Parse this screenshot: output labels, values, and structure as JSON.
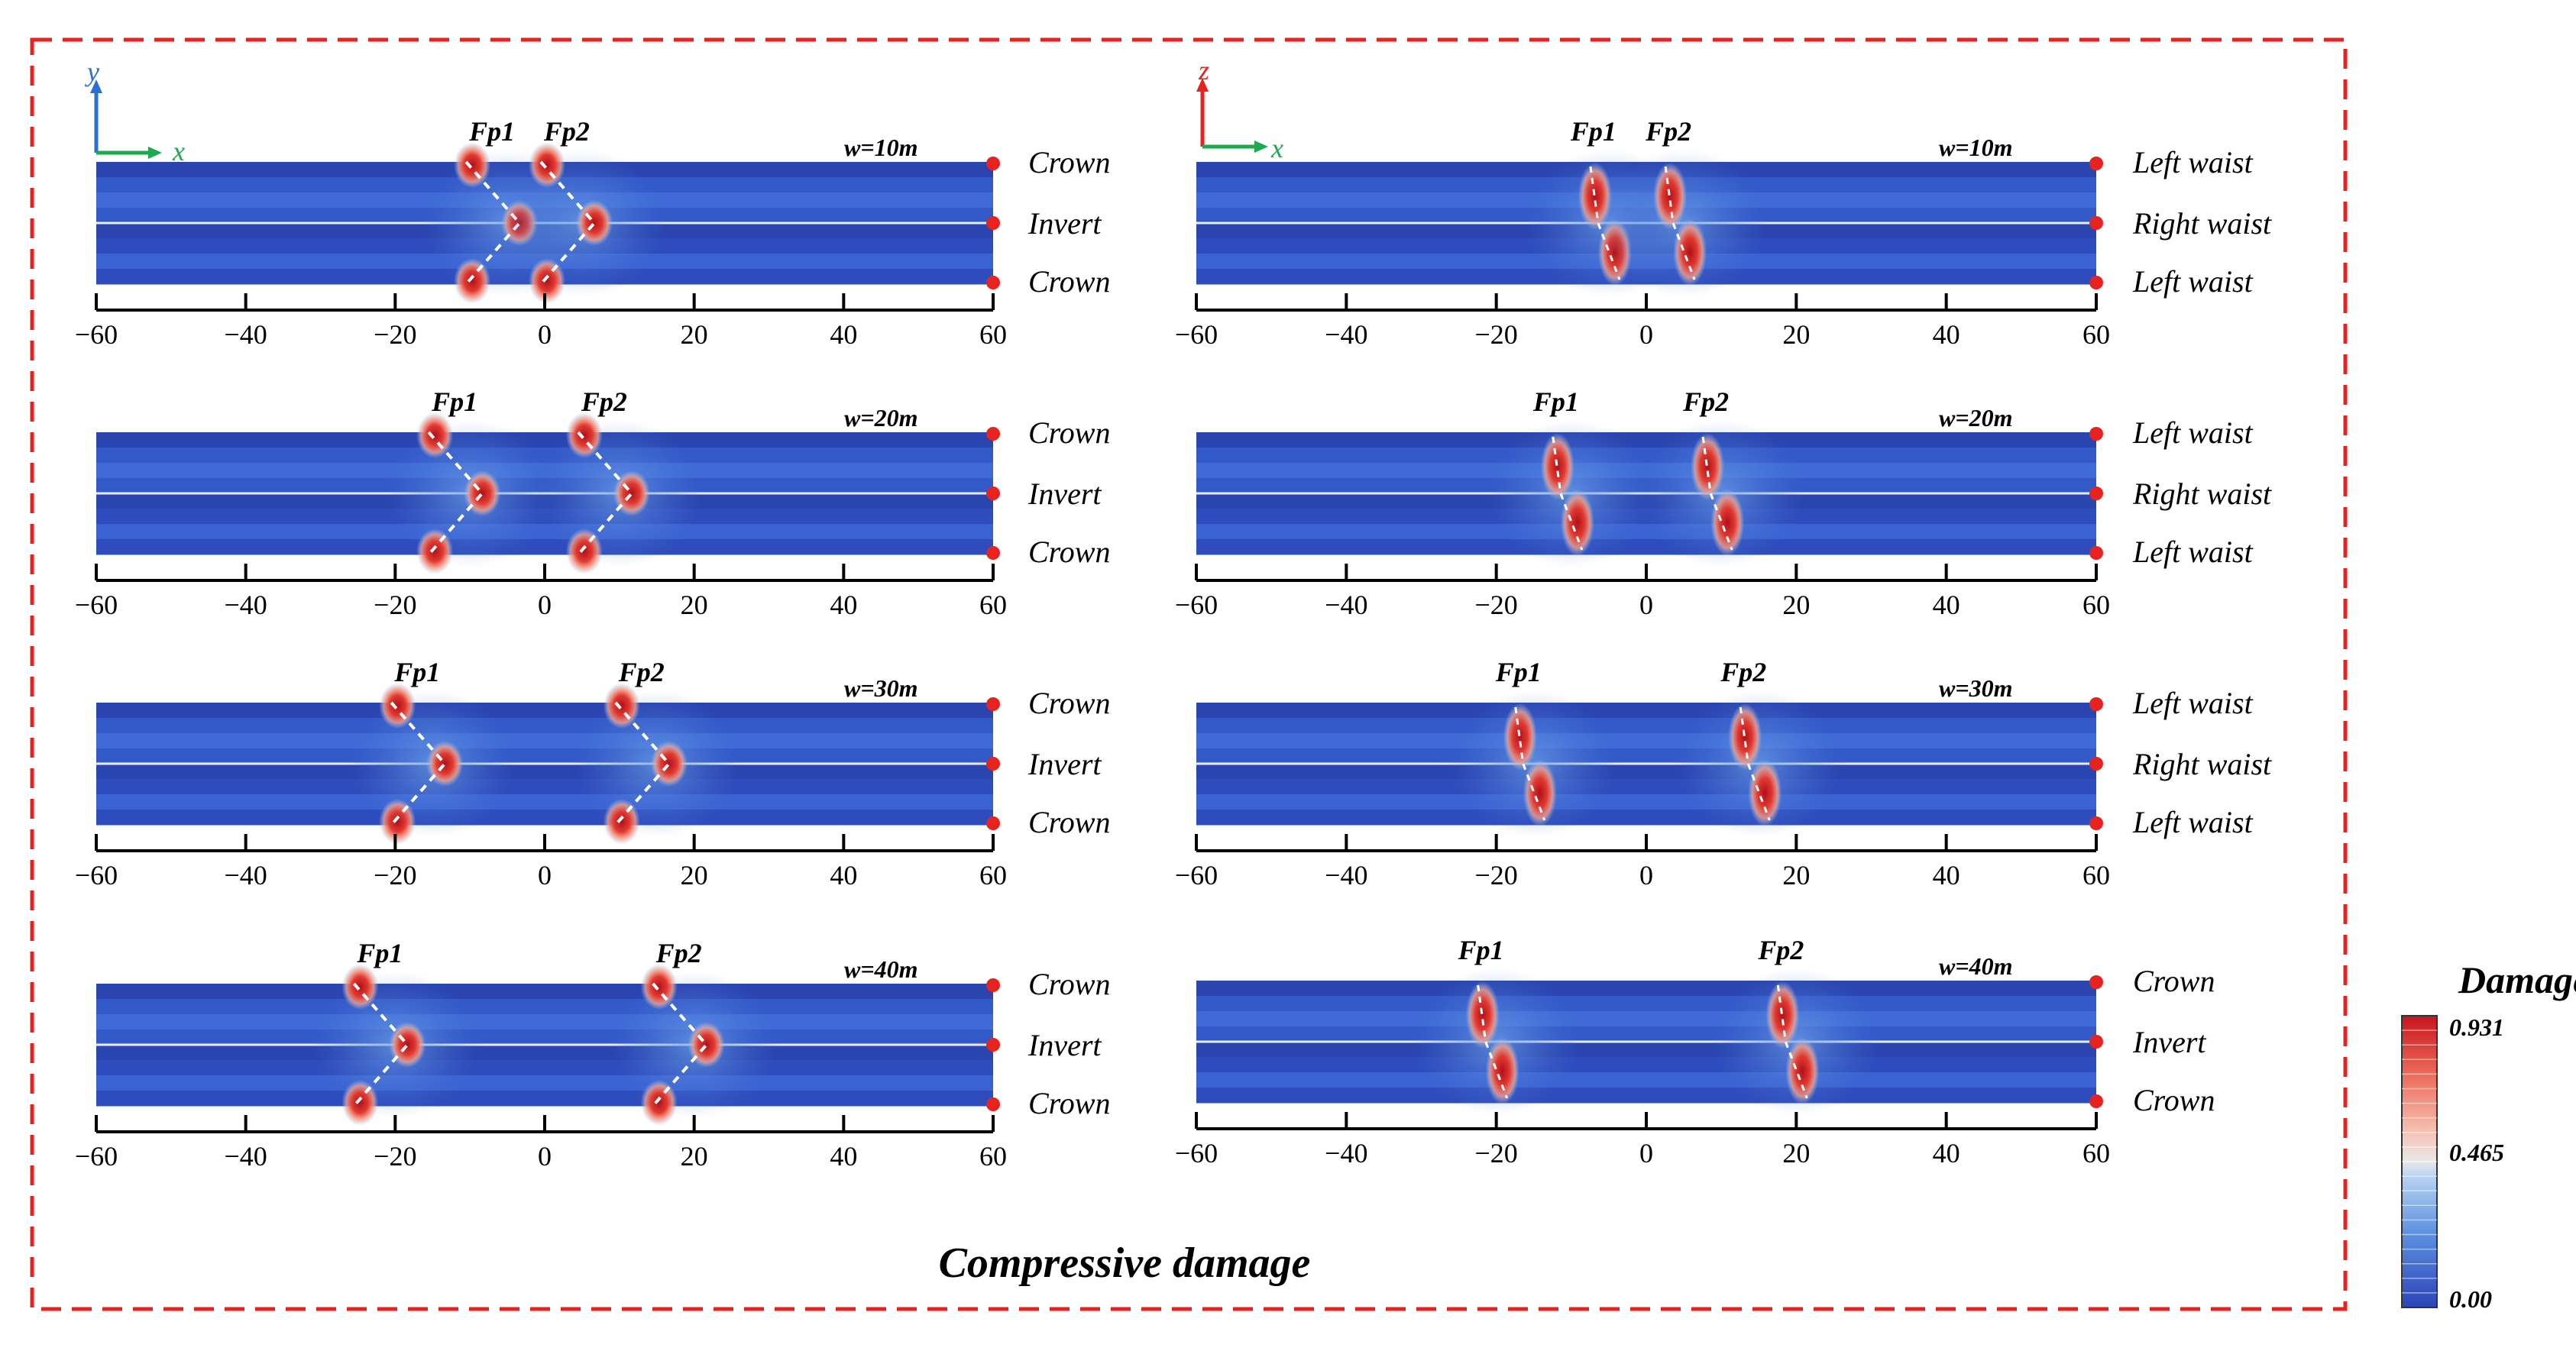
{
  "title": "Compressive damage",
  "axes_left": {
    "vertical": "y",
    "horizontal": "x"
  },
  "axes_right": {
    "vertical": "z",
    "horizontal": "x"
  },
  "ticks": [
    "−60",
    "−40",
    "−20",
    "0",
    "20",
    "40",
    "60"
  ],
  "fault_labels": [
    "Fp1",
    "Fp2"
  ],
  "colorbar": {
    "title": "Damagec",
    "max": "0.931",
    "mid": "0.465",
    "min": "0.00"
  },
  "colors": {
    "frame": "#e8231f",
    "tunnel_dark": "#2a46b4",
    "tunnel_light": "#3c64d8",
    "damage": "#c81e1e",
    "axis_y": "#2a6fd6",
    "axis_x": "#1fa84f",
    "axis_z": "#e8231f"
  },
  "left_panels": [
    {
      "w": "w=10m",
      "side_labels": [
        "Crown",
        "Invert",
        "Crown"
      ],
      "fault_x": [
        -5,
        5
      ]
    },
    {
      "w": "w=20m",
      "side_labels": [
        "Crown",
        "Invert",
        "Crown"
      ],
      "fault_x": [
        -10,
        10
      ]
    },
    {
      "w": "w=30m",
      "side_labels": [
        "Crown",
        "Invert",
        "Crown"
      ],
      "fault_x": [
        -15,
        15
      ]
    },
    {
      "w": "w=40m",
      "side_labels": [
        "Crown",
        "Invert",
        "Crown"
      ],
      "fault_x": [
        -20,
        20
      ]
    }
  ],
  "right_panels": [
    {
      "w": "w=10m",
      "side_labels": [
        "Left waist",
        "Right waist",
        "Left waist"
      ],
      "fault_x": [
        -5,
        5
      ]
    },
    {
      "w": "w=20m",
      "side_labels": [
        "Left waist",
        "Right waist",
        "Left waist"
      ],
      "fault_x": [
        -10,
        10
      ]
    },
    {
      "w": "w=30m",
      "side_labels": [
        "Left waist",
        "Right waist",
        "Left waist"
      ],
      "fault_x": [
        -15,
        15
      ]
    },
    {
      "w": "w=40m",
      "side_labels": [
        "Crown",
        "Invert",
        "Crown"
      ],
      "fault_x": [
        -20,
        20
      ]
    }
  ]
}
